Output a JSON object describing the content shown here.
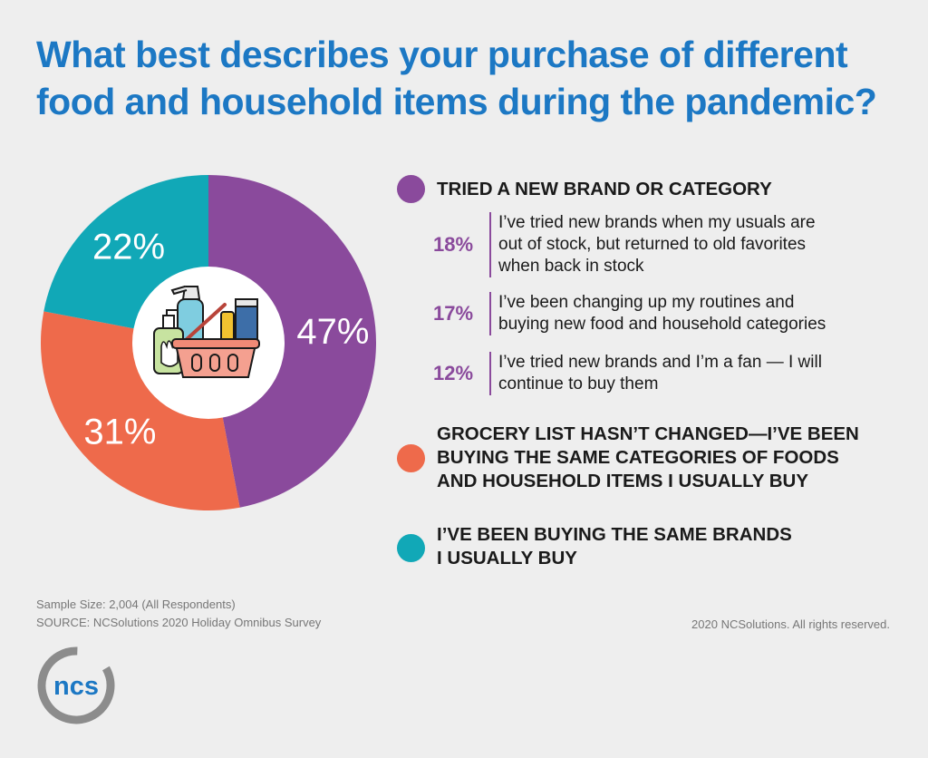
{
  "title_line1": "What best describes your purchase of different",
  "title_line2": "food and household items during the pandemic?",
  "chart_data": {
    "type": "pie",
    "title": "What best describes your purchase of different food and household items during the pandemic?",
    "slices": [
      {
        "label": "TRIED A NEW BRAND OR CATEGORY",
        "value": 47,
        "display": "47%",
        "color": "#8a4a9c"
      },
      {
        "label": "GROCERY LIST HASN'T CHANGED—I'VE BEEN BUYING THE SAME CATEGORIES OF FOODS AND HOUSEHOLD ITEMS I USUALLY BUY",
        "value": 31,
        "display": "31%",
        "color": "#ee6a4b"
      },
      {
        "label": "I'VE BEEN BUYING THE SAME BRANDS I USUALLY BUY",
        "value": 22,
        "display": "22%",
        "color": "#11a8b7"
      }
    ],
    "breakdown": [
      {
        "value": 18,
        "display": "18%",
        "text": "I've tried new brands when my usuals are out of stock, but returned to old favorites when back in stock"
      },
      {
        "value": 17,
        "display": "17%",
        "text": "I've been changing up my routines and buying new food and household categories"
      },
      {
        "value": 12,
        "display": "12%",
        "text": "I've tried new brands and I'm a fan — I will continue to buy them"
      }
    ],
    "center_icon": "grocery-basket-icon"
  },
  "legend": {
    "cat1": "TRIED A NEW BRAND OR CATEGORY",
    "sub1": {
      "pct": "18%",
      "line1": "I’ve tried new brands when my usuals are",
      "line2": "out of stock, but returned to old favorites",
      "line3": "when back in stock"
    },
    "sub2": {
      "pct": "17%",
      "line1": "I’ve been changing up my routines and",
      "line2": "buying new food and household categories"
    },
    "sub3": {
      "pct": "12%",
      "line1": "I’ve tried new brands and I’m a fan — I will",
      "line2": "continue to buy them"
    },
    "cat2": {
      "line1": "GROCERY LIST HASN’T CHANGED—I’VE BEEN",
      "line2": "BUYING THE SAME CATEGORIES OF FOODS",
      "line3": "AND HOUSEHOLD ITEMS I USUALLY BUY"
    },
    "cat3": {
      "line1": "I’VE BEEN BUYING THE SAME BRANDS",
      "line2": "I USUALLY BUY"
    }
  },
  "footer": {
    "sample": "Sample Size: 2,004 (All Respondents)",
    "source": "SOURCE: NCSolutions 2020 Holiday Omnibus Survey",
    "rights": "2020 NCSolutions. All rights reserved."
  },
  "logo": {
    "text": "ncs",
    "color": "#1c78c4",
    "ring_color": "#8c8c8c"
  }
}
